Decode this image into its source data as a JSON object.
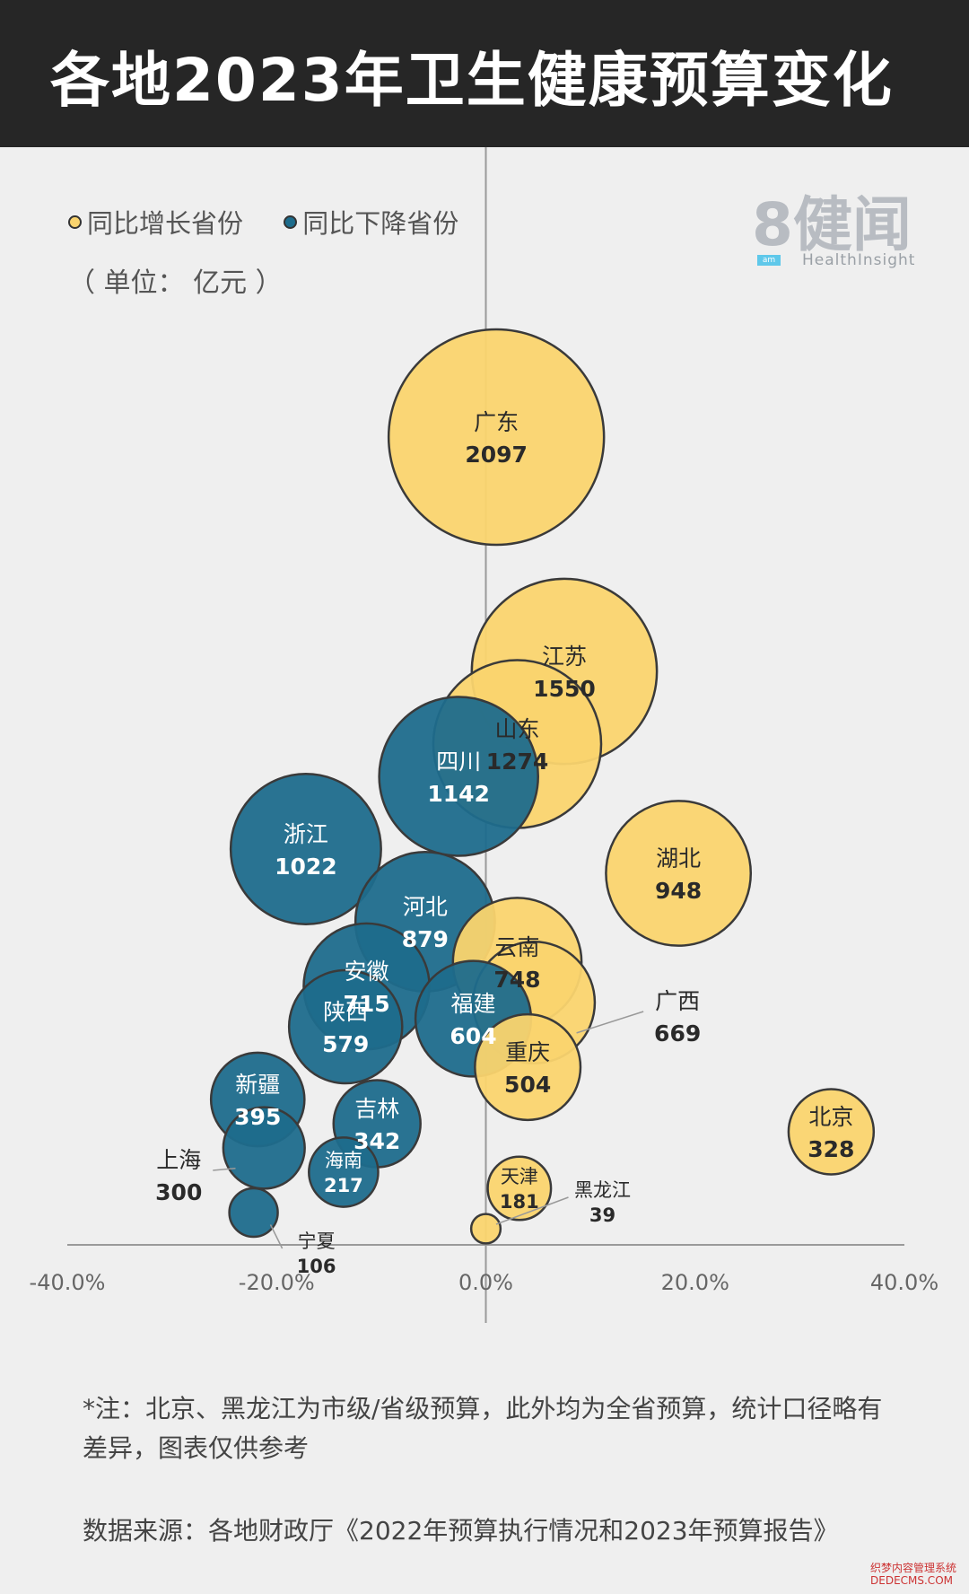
{
  "header": {
    "title": "各地2023年卫生健康预算变化"
  },
  "legend": {
    "increase_label": "同比增长省份",
    "decrease_label": "同比下降省份",
    "unit": "（ 单位： 亿元 ）"
  },
  "logo": {
    "text": "8健闻",
    "tag": "am",
    "sub": "HealthInsight"
  },
  "colors": {
    "increase": "#fad46e",
    "decrease": "#1d6c8c",
    "stroke": "#3a3a3a",
    "background": "#efefef"
  },
  "chart_data": {
    "type": "scatter",
    "xlabel": "",
    "ylabel": "",
    "xlim": [
      -40,
      40
    ],
    "x_ticks": [
      "-40.0%",
      "-20.0%",
      "0.0%",
      "20.0%",
      "40.0%"
    ],
    "x_tick_values": [
      -40,
      -20,
      0,
      20,
      40
    ],
    "points": [
      {
        "name": "广东",
        "value": 2097,
        "x": 1.0,
        "y": 1.0,
        "trend": "increase"
      },
      {
        "name": "江苏",
        "value": 1550,
        "x": 7.5,
        "y": 0.71,
        "trend": "increase"
      },
      {
        "name": "山东",
        "value": 1274,
        "x": 3.0,
        "y": 0.62,
        "trend": "increase"
      },
      {
        "name": "四川",
        "value": 1142,
        "x": -2.6,
        "y": 0.58,
        "trend": "decrease"
      },
      {
        "name": "浙江",
        "value": 1022,
        "x": -17.2,
        "y": 0.49,
        "trend": "decrease"
      },
      {
        "name": "湖北",
        "value": 948,
        "x": 18.4,
        "y": 0.46,
        "trend": "increase"
      },
      {
        "name": "河北",
        "value": 879,
        "x": -5.8,
        "y": 0.4,
        "trend": "decrease"
      },
      {
        "name": "云南",
        "value": 748,
        "x": 3.0,
        "y": 0.35,
        "trend": "increase"
      },
      {
        "name": "安徽",
        "value": 715,
        "x": -11.4,
        "y": 0.32,
        "trend": "decrease"
      },
      {
        "name": "广西",
        "value": 669,
        "x": 4.6,
        "y": 0.3,
        "trend": "increase"
      },
      {
        "name": "福建",
        "value": 604,
        "x": -1.2,
        "y": 0.28,
        "trend": "decrease"
      },
      {
        "name": "陕西",
        "value": 579,
        "x": -13.4,
        "y": 0.27,
        "trend": "decrease"
      },
      {
        "name": "重庆",
        "value": 504,
        "x": 4.0,
        "y": 0.22,
        "trend": "increase"
      },
      {
        "name": "新疆",
        "value": 395,
        "x": -21.8,
        "y": 0.18,
        "trend": "decrease"
      },
      {
        "name": "吉林",
        "value": 342,
        "x": -10.4,
        "y": 0.15,
        "trend": "decrease"
      },
      {
        "name": "北京",
        "value": 328,
        "x": 33.0,
        "y": 0.14,
        "trend": "increase"
      },
      {
        "name": "上海",
        "value": 300,
        "x": -21.2,
        "y": 0.12,
        "trend": "decrease"
      },
      {
        "name": "海南",
        "value": 217,
        "x": -13.6,
        "y": 0.09,
        "trend": "decrease"
      },
      {
        "name": "天津",
        "value": 181,
        "x": 3.2,
        "y": 0.07,
        "trend": "increase"
      },
      {
        "name": "宁夏",
        "value": 106,
        "x": -22.2,
        "y": 0.04,
        "trend": "decrease"
      },
      {
        "name": "黑龙江",
        "value": 39,
        "x": 0.0,
        "y": 0.02,
        "trend": "increase"
      }
    ],
    "grid": false,
    "legend_position": "top-left"
  },
  "notes": {
    "note": "*注：北京、黑龙江为市级/省级预算，此外均为全省预算，统计口径略有差异，图表仅供参考",
    "source": "数据来源：各地财政厅《2022年预算执行情况和2023年预算报告》"
  },
  "watermark": {
    "line1": "织梦内容管理系统",
    "line2": "DEDECMS.COM"
  }
}
